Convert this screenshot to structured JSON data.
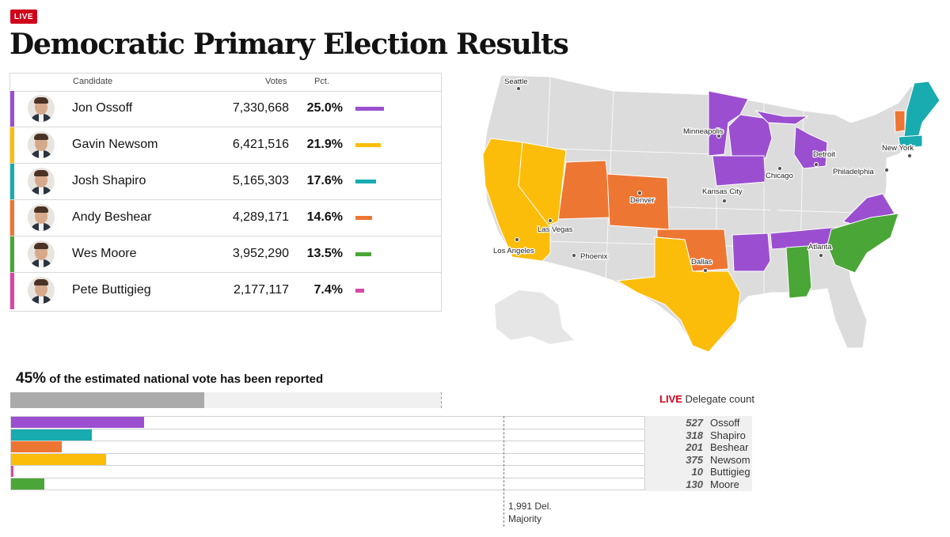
{
  "header": {
    "live_badge": "LIVE",
    "title": "Democratic Primary Election Results"
  },
  "table": {
    "columns": {
      "candidate": "Candidate",
      "votes": "Votes",
      "pct": "Pct."
    },
    "rows": [
      {
        "name": "Jon Ossoff",
        "votes": "7,330,668",
        "pct": "25.0%",
        "pct_value": 25.0,
        "color": "#9b4fd0"
      },
      {
        "name": "Gavin Newsom",
        "votes": "6,421,516",
        "pct": "21.9%",
        "pct_value": 21.9,
        "color": "#fbbd09"
      },
      {
        "name": "Josh Shapiro",
        "votes": "5,165,303",
        "pct": "17.6%",
        "pct_value": 17.6,
        "color": "#18abb0"
      },
      {
        "name": "Andy Beshear",
        "votes": "4,289,171",
        "pct": "14.6%",
        "pct_value": 14.6,
        "color": "#ee7633"
      },
      {
        "name": " Wes Moore",
        "votes": "3,952,290",
        "pct": "13.5%",
        "pct_value": 13.5,
        "color": "#4aa637"
      },
      {
        "name": "Pete Buttigieg",
        "votes": "2,177,117",
        "pct": "7.4%",
        "pct_value": 7.4,
        "color": "#d548a8"
      }
    ]
  },
  "map": {
    "cities": [
      {
        "name": "Seattle"
      },
      {
        "name": "Minneapolis"
      },
      {
        "name": "Detroit"
      },
      {
        "name": "Chicago"
      },
      {
        "name": "New York"
      },
      {
        "name": "Philadelphia"
      },
      {
        "name": "Denver"
      },
      {
        "name": "Kansas City"
      },
      {
        "name": "Las Vegas"
      },
      {
        "name": "Los Angeles"
      },
      {
        "name": "Phoenix"
      },
      {
        "name": "Dallas"
      },
      {
        "name": "Atlanta"
      }
    ]
  },
  "reported": {
    "percent_text": "45%",
    "text": "of the estimated national vote has been reported",
    "fraction": 0.45
  },
  "delegates": {
    "live_label": "LIVE",
    "title": "Delegate count",
    "majority_line1": "1,991 Del.",
    "majority_line2": "Majority",
    "majority_value": 1991
  },
  "chart_data": {
    "type": "bar",
    "categories": [
      "Ossoff",
      "Shapiro",
      "Beshear",
      "Newsom",
      "Buttigieg",
      "Moore"
    ],
    "values": [
      527,
      318,
      201,
      375,
      10,
      130
    ],
    "labels": [
      "527",
      "318",
      "201",
      "375",
      "10",
      "130"
    ],
    "colors": [
      "#9b4fd0",
      "#18abb0",
      "#ee7633",
      "#fbbd09",
      "#d548a8",
      "#4aa637"
    ],
    "xlim": [
      0,
      2510
    ]
  }
}
